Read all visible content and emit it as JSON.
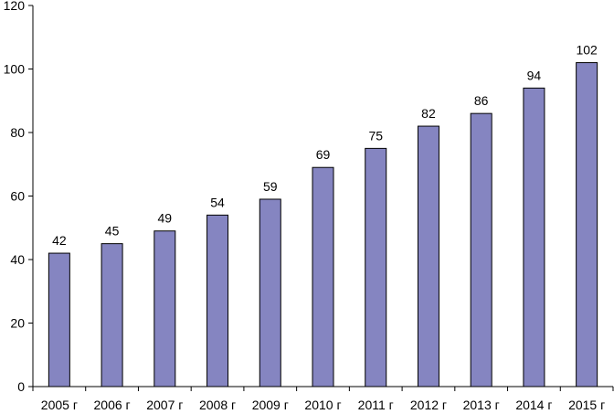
{
  "chart_data": {
    "type": "bar",
    "title": "",
    "xlabel": "",
    "ylabel": "",
    "categories": [
      "2005 г",
      "2006 г",
      "2007 г",
      "2008 г",
      "2009 г",
      "2010 г",
      "2011 г",
      "2012 г",
      "2013 г",
      "2014 г",
      "2015 г"
    ],
    "values": [
      42,
      45,
      49,
      54,
      59,
      69,
      75,
      82,
      86,
      94,
      102
    ],
    "data_labels": [
      "42",
      "45",
      "49",
      "54",
      "59",
      "69",
      "75",
      "82",
      "86",
      "94",
      "102"
    ],
    "ylim": [
      0,
      120
    ],
    "y_ticks": [
      0,
      20,
      40,
      60,
      80,
      100,
      120
    ],
    "y_tick_labels": [
      "0",
      "20",
      "40",
      "60",
      "80",
      "100",
      "120"
    ],
    "grid": false,
    "legend": "none",
    "colors": {
      "bar_fill": "#8585C1",
      "bar_stroke": "#000000",
      "axis": "#000000",
      "background": "#FFFFFF"
    }
  }
}
